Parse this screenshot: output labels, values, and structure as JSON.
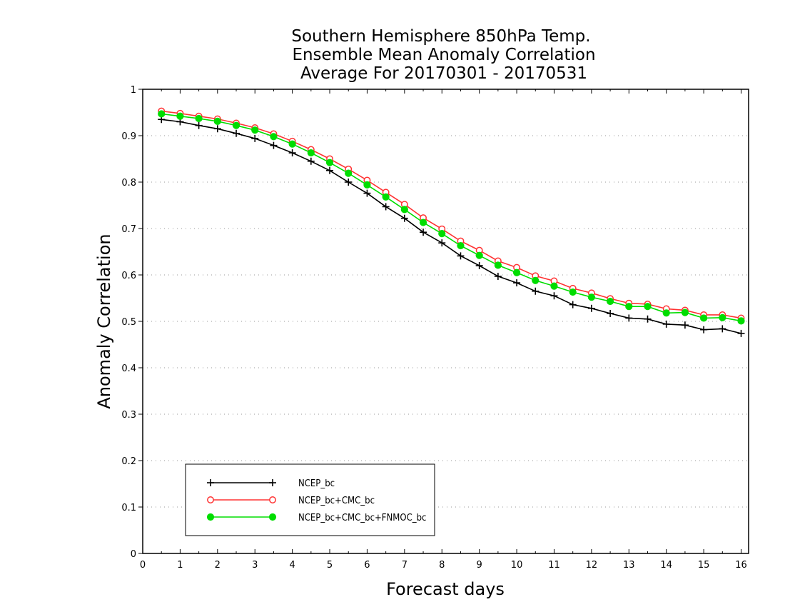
{
  "chart_data": {
    "type": "line",
    "title_lines": [
      "Southern Hemisphere 850hPa Temp.",
      "Ensemble Mean Anomaly Correlation",
      "Average For 20170301 - 20170531"
    ],
    "xlabel": "Forecast days",
    "ylabel": "Anomaly Correlation",
    "xlim": [
      0,
      16.2
    ],
    "ylim": [
      0,
      1
    ],
    "x_ticks": [
      0,
      1,
      2,
      3,
      4,
      5,
      6,
      7,
      8,
      9,
      10,
      11,
      12,
      13,
      14,
      15,
      16
    ],
    "y_ticks": [
      0,
      0.1,
      0.2,
      0.3,
      0.4,
      0.5,
      0.6,
      0.7,
      0.8,
      0.9,
      1
    ],
    "y_tick_labels": [
      "0",
      "0.1",
      "0.2",
      "0.3",
      "0.4",
      "0.5",
      "0.6",
      "0.7",
      "0.8",
      "0.9",
      "1"
    ],
    "grid": "horizontal-dotted",
    "legend_position": "bottom-left",
    "x": [
      0.5,
      1,
      1.5,
      2,
      2.5,
      3,
      3.5,
      4,
      4.5,
      5,
      5.5,
      6,
      6.5,
      7,
      7.5,
      8,
      8.5,
      9,
      9.5,
      10,
      10.5,
      11,
      11.5,
      12,
      12.5,
      13,
      13.5,
      14,
      14.5,
      15,
      15.5,
      16
    ],
    "series": [
      {
        "name": "NCEP_bc",
        "color": "#000000",
        "marker": "plus",
        "values": [
          0.935,
          0.93,
          0.922,
          0.915,
          0.905,
          0.894,
          0.879,
          0.863,
          0.845,
          0.825,
          0.8,
          0.776,
          0.747,
          0.722,
          0.692,
          0.669,
          0.641,
          0.62,
          0.597,
          0.583,
          0.565,
          0.555,
          0.536,
          0.528,
          0.517,
          0.507,
          0.505,
          0.494,
          0.492,
          0.482,
          0.484,
          0.474
        ]
      },
      {
        "name": "NCEP_bc+CMC_bc",
        "color": "#ff3333",
        "marker": "open-circle",
        "values": [
          0.953,
          0.948,
          0.942,
          0.936,
          0.927,
          0.917,
          0.904,
          0.888,
          0.87,
          0.85,
          0.828,
          0.804,
          0.778,
          0.752,
          0.723,
          0.699,
          0.673,
          0.653,
          0.63,
          0.616,
          0.598,
          0.587,
          0.571,
          0.561,
          0.549,
          0.539,
          0.537,
          0.527,
          0.524,
          0.514,
          0.514,
          0.507
        ]
      },
      {
        "name": "NCEP_bc+CMC_bc+FNMOC_bc",
        "color": "#00dd00",
        "marker": "filled-circle",
        "values": [
          0.947,
          0.942,
          0.937,
          0.931,
          0.922,
          0.912,
          0.898,
          0.882,
          0.863,
          0.842,
          0.819,
          0.794,
          0.768,
          0.741,
          0.713,
          0.689,
          0.663,
          0.642,
          0.621,
          0.605,
          0.588,
          0.576,
          0.563,
          0.552,
          0.543,
          0.532,
          0.532,
          0.518,
          0.519,
          0.507,
          0.508,
          0.501
        ]
      }
    ]
  }
}
